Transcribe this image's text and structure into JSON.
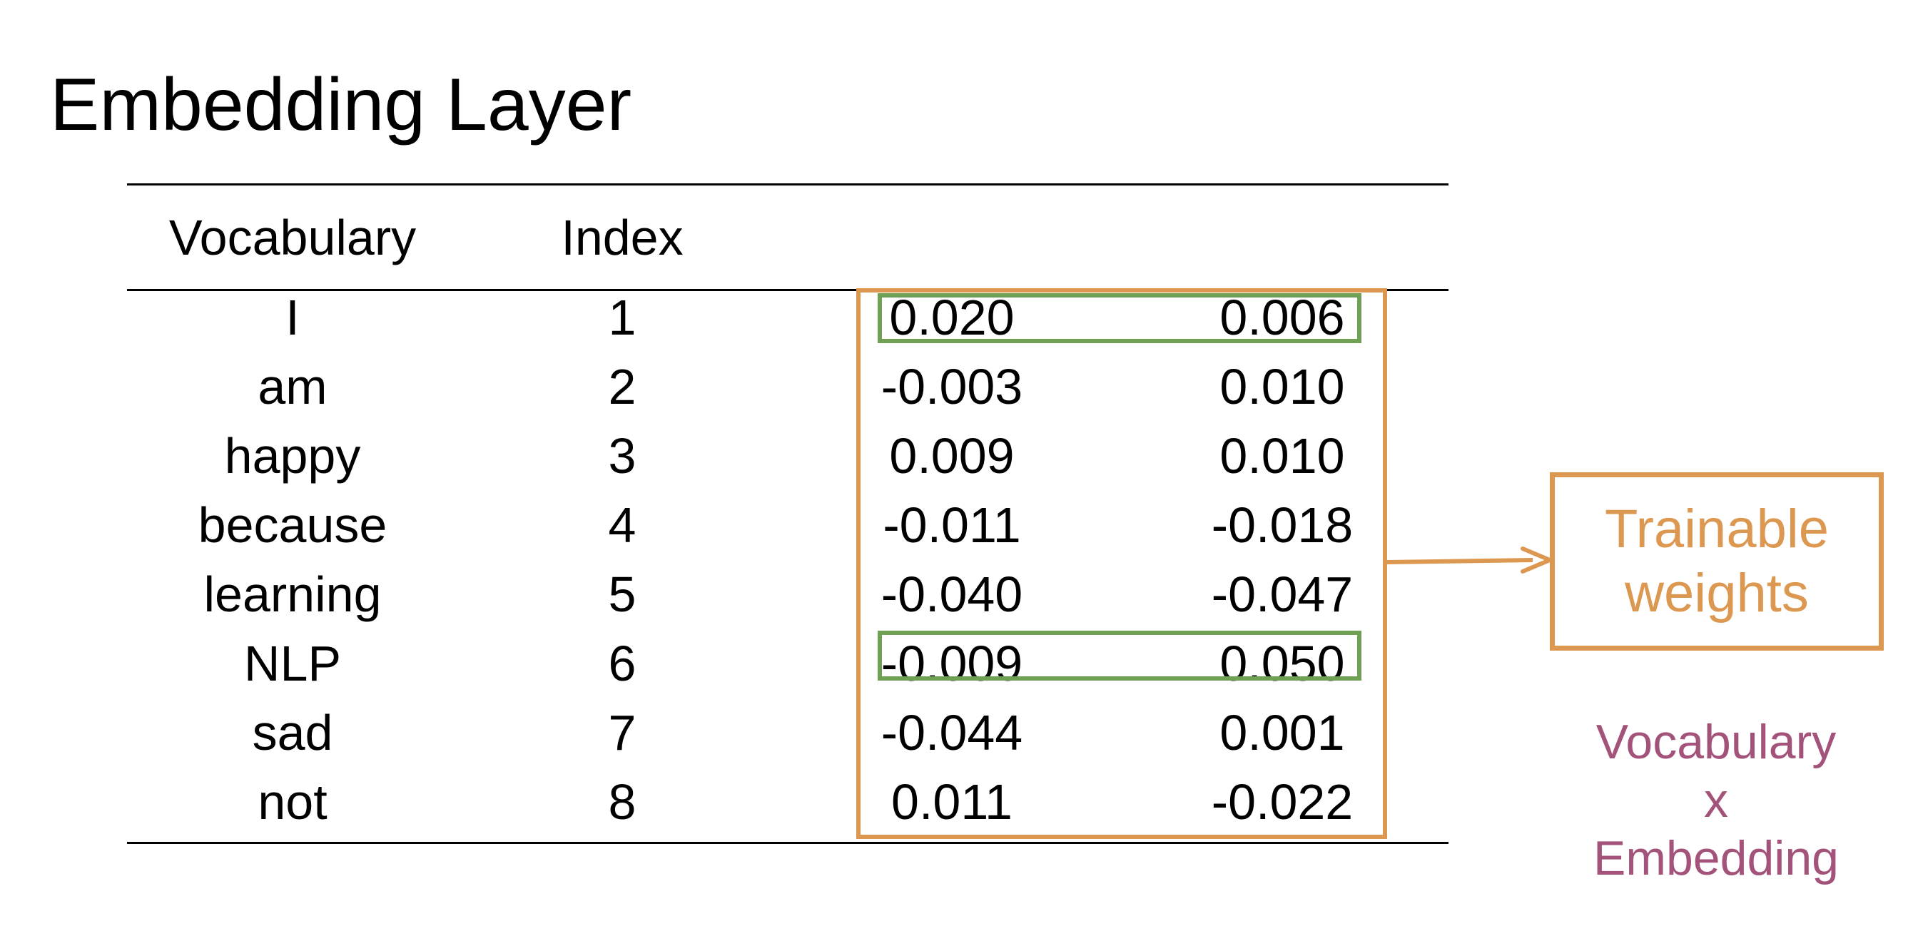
{
  "title": "Embedding Layer",
  "table": {
    "headers": [
      "Vocabulary",
      "Index"
    ],
    "rows": [
      {
        "word": "I",
        "index": "1",
        "v1": "0.020",
        "v2": "0.006"
      },
      {
        "word": "am",
        "index": "2",
        "v1": "-0.003",
        "v2": "0.010"
      },
      {
        "word": "happy",
        "index": "3",
        "v1": "0.009",
        "v2": "0.010"
      },
      {
        "word": "because",
        "index": "4",
        "v1": "-0.011",
        "v2": "-0.018"
      },
      {
        "word": "learning",
        "index": "5",
        "v1": "-0.040",
        "v2": "-0.047"
      },
      {
        "word": "NLP",
        "index": "6",
        "v1": "-0.009",
        "v2": "0.050"
      },
      {
        "word": "sad",
        "index": "7",
        "v1": "-0.044",
        "v2": "0.001"
      },
      {
        "word": "not",
        "index": "8",
        "v1": "0.011",
        "v2": "-0.022"
      }
    ]
  },
  "callout": {
    "line1": "Trainable",
    "line2": "weights"
  },
  "shape_note": {
    "line1": "Vocabulary",
    "line2": "x",
    "line3": "Embedding"
  },
  "highlighted_rows": [
    "I",
    "NLP"
  ],
  "colors": {
    "weights_box": "#dc9850",
    "row_highlight": "#6fa054",
    "shape_note": "#a3527a"
  }
}
